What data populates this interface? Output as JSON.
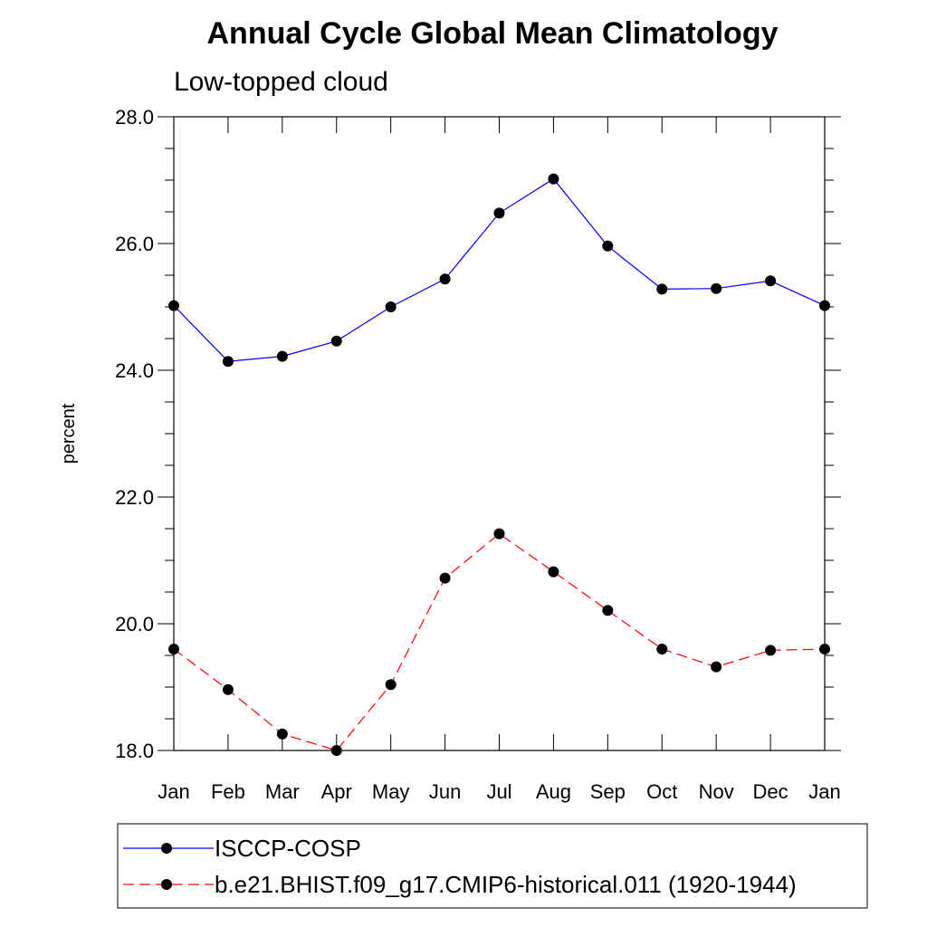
{
  "chart_data": {
    "type": "line",
    "title": "Annual Cycle Global Mean Climatology",
    "subtitle": "Low-topped cloud",
    "xlabel": "",
    "ylabel": "percent",
    "categories": [
      "Jan",
      "Feb",
      "Mar",
      "Apr",
      "May",
      "Jun",
      "Jul",
      "Aug",
      "Sep",
      "Oct",
      "Nov",
      "Dec",
      "Jan"
    ],
    "ylim": [
      18.0,
      28.0
    ],
    "yticks": [
      "18.0",
      "20.0",
      "22.0",
      "24.0",
      "26.0",
      "28.0"
    ],
    "ytick_values": [
      18,
      20,
      22,
      24,
      26,
      28
    ],
    "yminor_step": 0.5,
    "series": [
      {
        "name": "ISCCP-COSP",
        "color": "#0000ff",
        "dash": "solid",
        "marker": "filled-circle",
        "values": [
          25.02,
          24.14,
          24.22,
          24.46,
          25.0,
          25.44,
          26.48,
          27.02,
          25.96,
          25.28,
          25.29,
          25.41,
          25.02
        ]
      },
      {
        "name": "b.e21.BHIST.f09_g17.CMIP6-historical.011 (1920-1944)",
        "color": "#ff0000",
        "dash": "dashed",
        "marker": "filled-circle",
        "values": [
          19.6,
          18.96,
          18.26,
          18.0,
          19.04,
          20.72,
          21.42,
          20.82,
          20.21,
          19.6,
          19.32,
          19.58,
          19.6
        ]
      }
    ],
    "legend_position": "bottom"
  }
}
